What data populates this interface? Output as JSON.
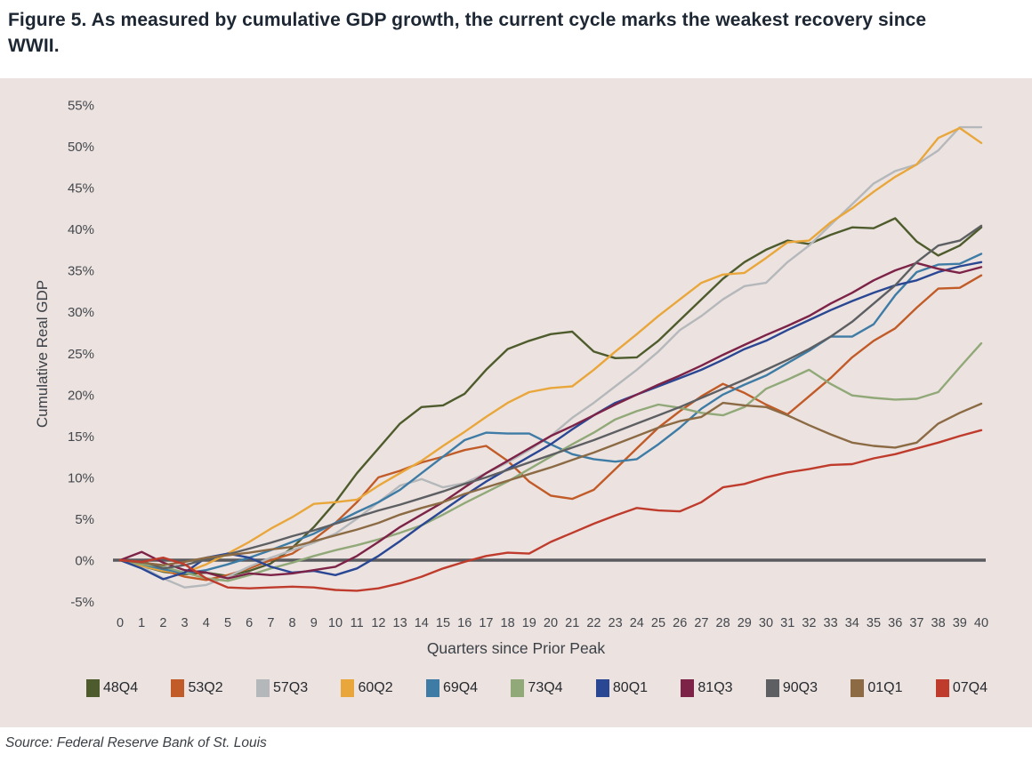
{
  "figure": {
    "title": "Figure 5. As measured by cumulative GDP growth, the current cycle marks the weakest recovery since WWII."
  },
  "source": "Source: Federal Reserve Bank of St. Louis",
  "panel_background": "#ece3e0",
  "zero_line_color": "#595b5e",
  "chart_data": {
    "type": "line",
    "title": "",
    "xlabel": "Quarters since Prior Peak",
    "ylabel": "Cumulative Real GDP",
    "x_ticks": [
      0,
      1,
      2,
      3,
      4,
      5,
      6,
      7,
      8,
      9,
      10,
      11,
      12,
      13,
      14,
      15,
      16,
      17,
      18,
      19,
      20,
      21,
      22,
      23,
      24,
      25,
      26,
      27,
      28,
      29,
      30,
      31,
      32,
      33,
      34,
      35,
      36,
      37,
      38,
      39,
      40
    ],
    "y_ticks": [
      55,
      50,
      45,
      40,
      35,
      30,
      25,
      20,
      15,
      10,
      5,
      0,
      -5
    ],
    "y_tick_suffix": "%",
    "ylim": [
      -7.5,
      57.5
    ],
    "xlim": [
      0,
      40
    ],
    "grid": false,
    "legend_position": "bottom",
    "zero_line": true,
    "series": [
      {
        "name": "48Q4",
        "color": "#4e5b2c",
        "values": [
          0,
          -0.7,
          -1.4,
          -1.7,
          -1.5,
          -1.9,
          -1.3,
          -0.4,
          1.5,
          4,
          7,
          10.5,
          13.5,
          16.5,
          18.5,
          18.7,
          20.1,
          23,
          25.5,
          26.5,
          27.3,
          27.6,
          25.2,
          24.4,
          24.5,
          26.5,
          29,
          31.5,
          34,
          36,
          37.5,
          38.6,
          38.2,
          39.3,
          40.2,
          40.1,
          41.3,
          38.5,
          36.8,
          38,
          40.2
        ]
      },
      {
        "name": "53Q2",
        "color": "#c15b28",
        "values": [
          0,
          -0.4,
          -1.2,
          -2,
          -2.4,
          -1.8,
          -1,
          0,
          0.8,
          2.5,
          4.5,
          7,
          10,
          10.8,
          11.8,
          12.5,
          13.3,
          13.8,
          12,
          9.5,
          7.8,
          7.4,
          8.5,
          11,
          13.5,
          16,
          18,
          19.8,
          21.3,
          20.2,
          18.8,
          17.6,
          19.8,
          22,
          24.5,
          26.5,
          28,
          30.5,
          32.8,
          32.9,
          34.4
        ]
      },
      {
        "name": "57Q3",
        "color": "#b5b8bb",
        "values": [
          0,
          -0.8,
          -2.2,
          -3.3,
          -3,
          -2,
          -0.8,
          0.3,
          1.2,
          2.1,
          3.2,
          5,
          7,
          9,
          9.8,
          8.8,
          9.3,
          10.5,
          11.8,
          13.3,
          15,
          17.2,
          19,
          21,
          23,
          25.2,
          27.8,
          29.5,
          31.5,
          33.1,
          33.5,
          36,
          38,
          40.5,
          43,
          45.5,
          47,
          47.8,
          49.5,
          52.3,
          52.3
        ]
      },
      {
        "name": "60Q2",
        "color": "#e9a63b",
        "values": [
          0,
          -0.7,
          -1.3,
          -1.5,
          -0.5,
          0.8,
          2.2,
          3.8,
          5.2,
          6.8,
          7,
          7.3,
          9,
          10.5,
          12,
          13.8,
          15.5,
          17.3,
          19,
          20.3,
          20.8,
          21,
          23,
          25.2,
          27.3,
          29.5,
          31.5,
          33.5,
          34.5,
          34.7,
          36.5,
          38.4,
          38.6,
          40.8,
          42.5,
          44.5,
          46.3,
          47.8,
          51,
          52.2,
          50.4
        ]
      },
      {
        "name": "69Q4",
        "color": "#3e7ca6",
        "values": [
          0,
          -0.5,
          -1.1,
          -1.6,
          -1.2,
          -0.5,
          0.3,
          1.2,
          2.2,
          3.2,
          4.5,
          5.8,
          7,
          8.5,
          10.5,
          12.5,
          14.5,
          15.4,
          15.3,
          15.3,
          14,
          12.8,
          12.2,
          11.9,
          12.2,
          14,
          16,
          18.3,
          20,
          21.2,
          22.3,
          23.8,
          25.3,
          27,
          27,
          28.5,
          32,
          34.8,
          35.7,
          35.8,
          37
        ]
      },
      {
        "name": "73Q4",
        "color": "#91a878",
        "values": [
          0,
          -0.5,
          -0.8,
          -1.5,
          -2.2,
          -2.5,
          -1.8,
          -1,
          -0.3,
          0.5,
          1.2,
          1.8,
          2.5,
          3.3,
          4.2,
          5.5,
          6.9,
          8.2,
          9.5,
          11,
          12.5,
          14,
          15.4,
          17,
          18,
          18.8,
          18.4,
          17.8,
          17.5,
          18.5,
          20.7,
          21.8,
          23,
          21.3,
          19.9,
          19.6,
          19.4,
          19.5,
          20.3,
          23.3,
          26.2
        ]
      },
      {
        "name": "80Q1",
        "color": "#2a4794",
        "values": [
          0,
          -1,
          -2.3,
          -1.5,
          0.3,
          0.8,
          0.3,
          -0.8,
          -1.5,
          -1.3,
          -1.8,
          -1,
          0.5,
          2.3,
          4.2,
          6,
          7.8,
          9.5,
          11,
          12.5,
          14,
          15.8,
          17.5,
          19,
          20,
          21,
          22,
          23,
          24.2,
          25.5,
          26.5,
          27.8,
          29,
          30.2,
          31.3,
          32.3,
          33.2,
          33.8,
          34.8,
          35.5,
          36
        ]
      },
      {
        "name": "81Q3",
        "color": "#7d2348",
        "values": [
          0,
          1,
          -0.3,
          -1.2,
          -1.5,
          -2.2,
          -1.6,
          -1.8,
          -1.6,
          -1.2,
          -0.8,
          0.5,
          2.2,
          4,
          5.5,
          7,
          8.8,
          10.5,
          12,
          13.5,
          15,
          16.2,
          17.5,
          18.8,
          20,
          21.2,
          22.3,
          23.5,
          24.8,
          26,
          27.2,
          28.3,
          29.5,
          31,
          32.3,
          33.8,
          35,
          35.9,
          35.2,
          34.7,
          35.4
        ]
      },
      {
        "name": "90Q3",
        "color": "#5d5f63",
        "values": [
          0,
          -0.1,
          -1,
          -0.6,
          0.1,
          0.7,
          1.4,
          2.1,
          2.9,
          3.6,
          4.4,
          5.2,
          6,
          6.7,
          7.5,
          8.3,
          9.2,
          10,
          10.9,
          11.8,
          12.7,
          13.6,
          14.5,
          15.5,
          16.5,
          17.5,
          18.5,
          19.6,
          20.7,
          21.8,
          23,
          24.2,
          25.5,
          27,
          28.8,
          31,
          33.2,
          36,
          38,
          38.6,
          40.4
        ]
      },
      {
        "name": "01Q1",
        "color": "#8b6a44",
        "values": [
          0,
          -0.3,
          -0.6,
          -0.2,
          0.3,
          0.6,
          0.9,
          1.3,
          1.6,
          2.3,
          3,
          3.7,
          4.5,
          5.5,
          6.3,
          7,
          8,
          8.8,
          9.6,
          10.4,
          11.2,
          12.1,
          13,
          14,
          15,
          16,
          16.8,
          17.3,
          19,
          18.7,
          18.5,
          17.5,
          16.3,
          15.2,
          14.2,
          13.8,
          13.6,
          14.2,
          16.5,
          17.8,
          18.9
        ]
      },
      {
        "name": "07Q4",
        "color": "#bf3b2c",
        "values": [
          0,
          -0.2,
          0.3,
          -0.5,
          -2.2,
          -3.3,
          -3.4,
          -3.3,
          -3.2,
          -3.3,
          -3.6,
          -3.7,
          -3.4,
          -2.8,
          -2,
          -1,
          -0.2,
          0.5,
          0.9,
          0.8,
          2.2,
          3.3,
          4.4,
          5.4,
          6.3,
          6,
          5.9,
          7,
          8.8,
          9.2,
          10,
          10.6,
          11,
          11.5,
          11.6,
          12.3,
          12.8,
          13.5,
          14.2,
          15,
          15.7
        ]
      }
    ]
  }
}
